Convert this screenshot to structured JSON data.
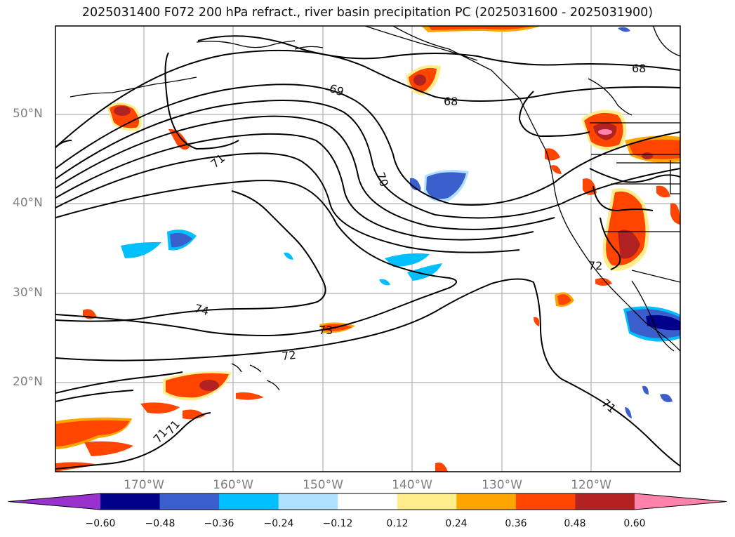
{
  "title": "2025031400 F072 200 hPa refract., river basin precipitation PC (2025031600 - 2025031900)",
  "axes": {
    "lat_labels": [
      "50°N",
      "40°N",
      "30°N",
      "20°N"
    ],
    "lon_labels": [
      "170°W",
      "160°W",
      "150°W",
      "140°W",
      "130°W",
      "120°W"
    ]
  },
  "contour_labels": [
    "68",
    "68",
    "69",
    "70",
    "71",
    "74",
    "72",
    "73",
    "71",
    "71",
    "71",
    "72"
  ],
  "colorbar": {
    "ticks": [
      "−0.60",
      "−0.48",
      "−0.36",
      "−0.24",
      "−0.12",
      "0.12",
      "0.24",
      "0.36",
      "0.48",
      "0.60"
    ],
    "colors": [
      "#9932CC",
      "#00008B",
      "#3A5FCD",
      "#00BFFF",
      "#B0E2FF",
      "#FFFFFF",
      "#FFEC8B",
      "#FFA500",
      "#FF4500",
      "#B22222",
      "#FF82AB"
    ]
  }
}
